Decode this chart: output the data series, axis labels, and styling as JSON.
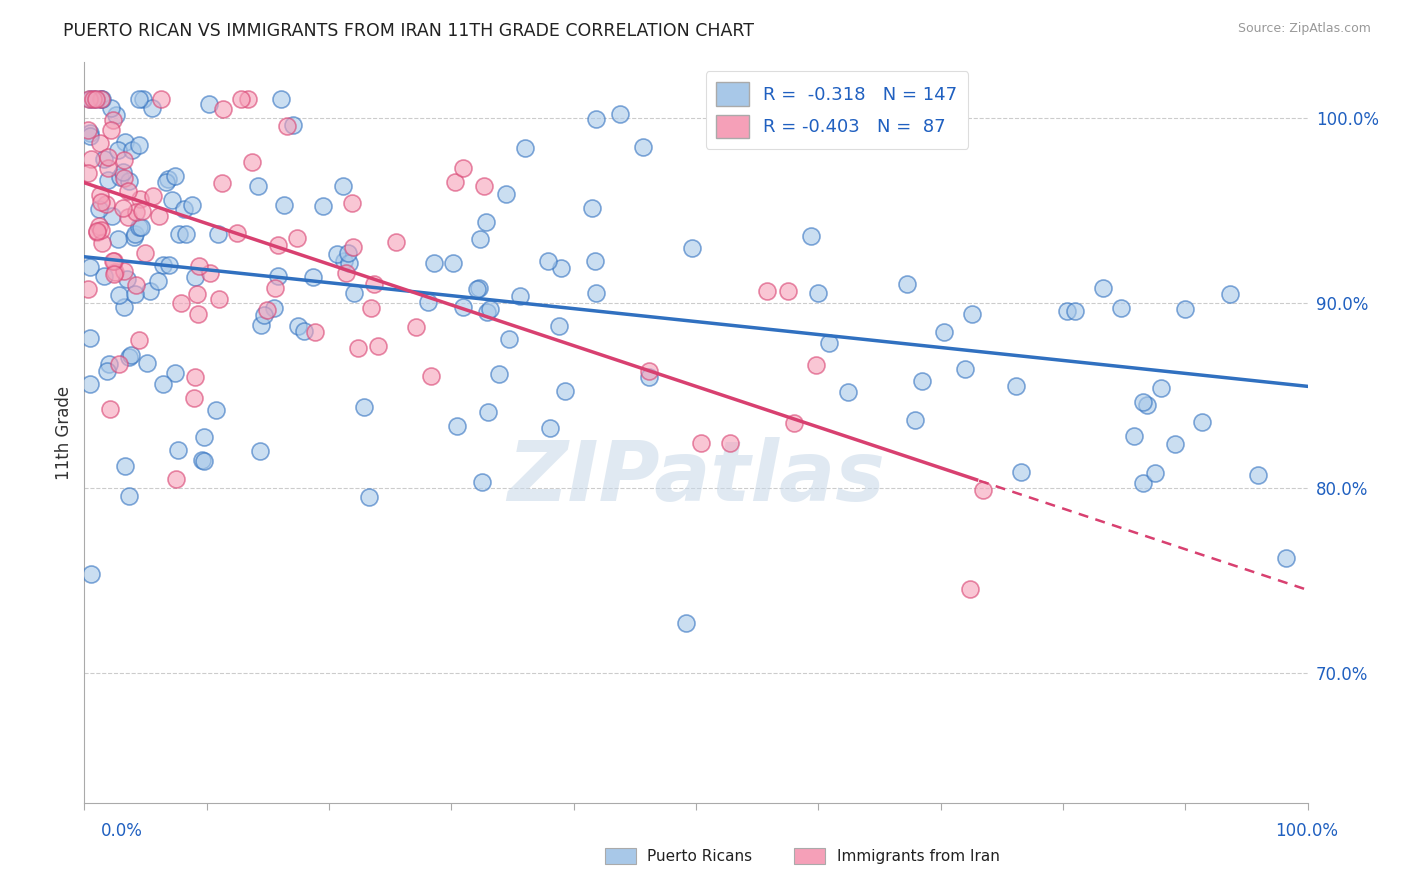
{
  "title": "PUERTO RICAN VS IMMIGRANTS FROM IRAN 11TH GRADE CORRELATION CHART",
  "source": "Source: ZipAtlas.com",
  "ylabel": "11th Grade",
  "xlim": [
    0.0,
    100.0
  ],
  "ylim": [
    63.0,
    103.0
  ],
  "yticks": [
    70.0,
    80.0,
    90.0,
    100.0
  ],
  "blue_R": -0.318,
  "blue_N": 147,
  "pink_R": -0.403,
  "pink_N": 87,
  "blue_color": "#a8c8e8",
  "pink_color": "#f5a0b8",
  "blue_line_color": "#3070c0",
  "pink_line_color": "#d84070",
  "background_color": "#ffffff",
  "grid_color": "#cccccc",
  "legend_label_blue": "Puerto Ricans",
  "legend_label_pink": "Immigrants from Iran",
  "blue_trend_x0": 0,
  "blue_trend_y0": 92.5,
  "blue_trend_x1": 100,
  "blue_trend_y1": 85.5,
  "pink_trend_x0": 0,
  "pink_trend_y0": 96.5,
  "pink_trend_x1": 100,
  "pink_trend_y1": 74.5,
  "pink_solid_end": 73,
  "watermark": "ZIPatlas",
  "watermark_color": "#c8d8e8",
  "legend_text_color": "#2060c0",
  "legend_R_color": "#2060c0",
  "ytick_color": "#2060c0",
  "xlabel_color": "#2060c0"
}
